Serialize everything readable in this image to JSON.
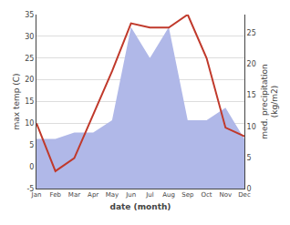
{
  "chart_data": {
    "type": "line",
    "categories": [
      "Jan",
      "Feb",
      "Mar",
      "Apr",
      "May",
      "Jun",
      "Jul",
      "Aug",
      "Sep",
      "Oct",
      "Nov",
      "Dec"
    ],
    "series": [
      {
        "type": "line",
        "color": "#c0392b",
        "values": [
          10,
          -1,
          2,
          12,
          22,
          33,
          32,
          32,
          35,
          25,
          9,
          7
        ]
      },
      {
        "type": "area",
        "color": "#b0b8e8",
        "axis": "y2",
        "values": [
          8,
          8,
          9,
          9,
          11,
          26,
          21,
          26,
          11,
          11,
          13,
          8
        ]
      }
    ],
    "xlabel": "date (month)",
    "ylabel": "max temp (C)",
    "y2label": "med. precipitation\n(kg/m2)",
    "ylim": [
      -5,
      35
    ],
    "yticks": [
      -5,
      0,
      5,
      10,
      15,
      20,
      25,
      30,
      35
    ],
    "y2lim": [
      0,
      28
    ],
    "y2ticks": [
      0,
      5,
      10,
      15,
      20,
      25
    ],
    "grid": true
  }
}
